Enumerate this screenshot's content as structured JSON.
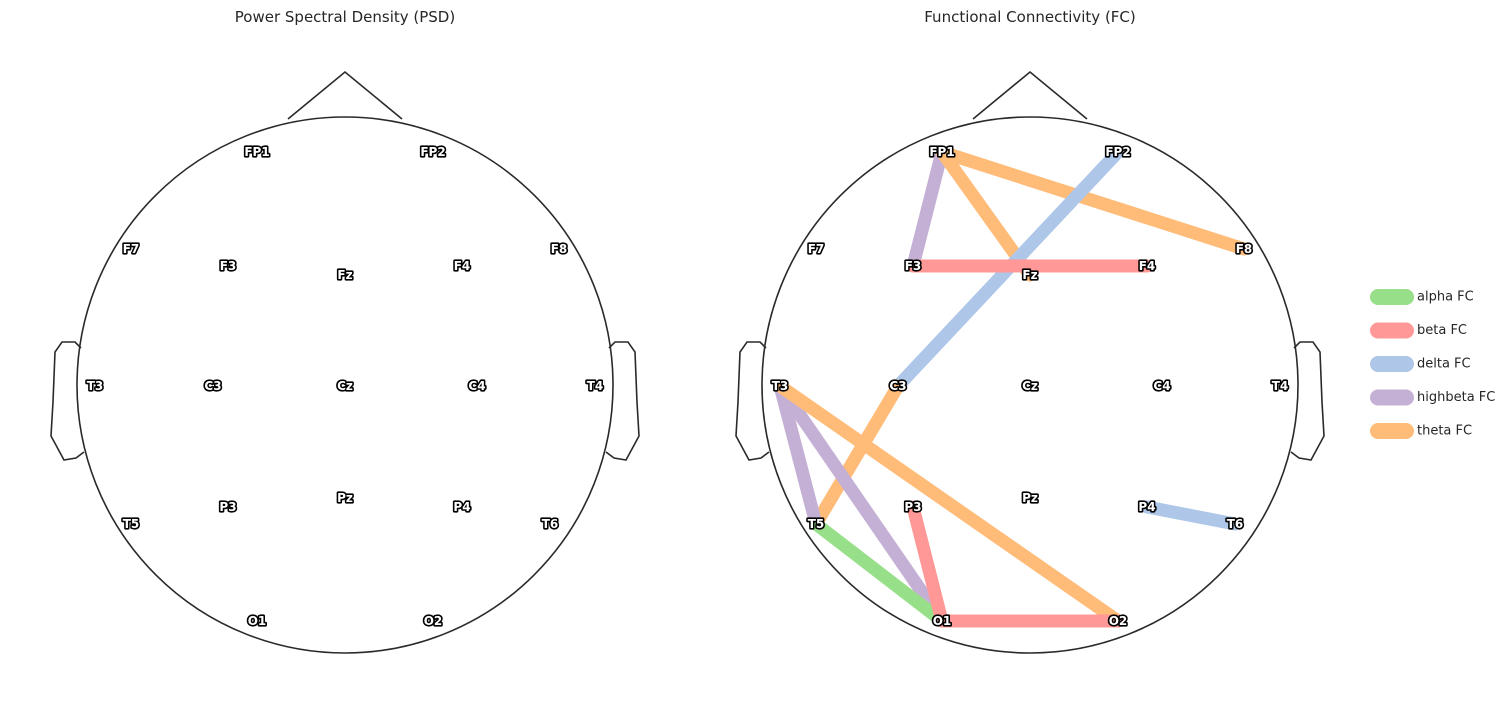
{
  "panels": [
    {
      "id": "psd",
      "title": "Power Spectral Density (PSD)"
    },
    {
      "id": "fc",
      "title": "Functional Connectivity (FC)"
    }
  ],
  "electrodes": [
    "FP1",
    "FP2",
    "F7",
    "F3",
    "Fz",
    "F4",
    "F8",
    "T3",
    "C3",
    "Cz",
    "C4",
    "T4",
    "T5",
    "P3",
    "Pz",
    "P4",
    "T6",
    "O1",
    "O2"
  ],
  "connections": [
    {
      "band": "highbeta",
      "from": "FP1",
      "to": "F3"
    },
    {
      "band": "theta",
      "from": "FP1",
      "to": "Fz"
    },
    {
      "band": "theta",
      "from": "FP1",
      "to": "F8"
    },
    {
      "band": "delta",
      "from": "FP2",
      "to": "C3"
    },
    {
      "band": "beta",
      "from": "F3",
      "to": "F4"
    },
    {
      "band": "theta",
      "from": "C3",
      "to": "T5"
    },
    {
      "band": "highbeta",
      "from": "T3",
      "to": "T5"
    },
    {
      "band": "highbeta",
      "from": "T3",
      "to": "O1"
    },
    {
      "band": "theta",
      "from": "T3",
      "to": "O2"
    },
    {
      "band": "alpha",
      "from": "T5",
      "to": "O1"
    },
    {
      "band": "beta",
      "from": "P3",
      "to": "O1"
    },
    {
      "band": "beta",
      "from": "O1",
      "to": "O2"
    },
    {
      "band": "delta",
      "from": "P4",
      "to": "T6"
    }
  ],
  "legend": [
    {
      "band": "alpha",
      "label": "alpha FC",
      "color": "#98df8a"
    },
    {
      "band": "beta",
      "label": "beta FC",
      "color": "#ff9896"
    },
    {
      "band": "delta",
      "label": "delta FC",
      "color": "#aec7e8"
    },
    {
      "band": "highbeta",
      "label": "highbeta FC",
      "color": "#c5b0d5"
    },
    {
      "band": "theta",
      "label": "theta FC",
      "color": "#ffbb78"
    }
  ]
}
